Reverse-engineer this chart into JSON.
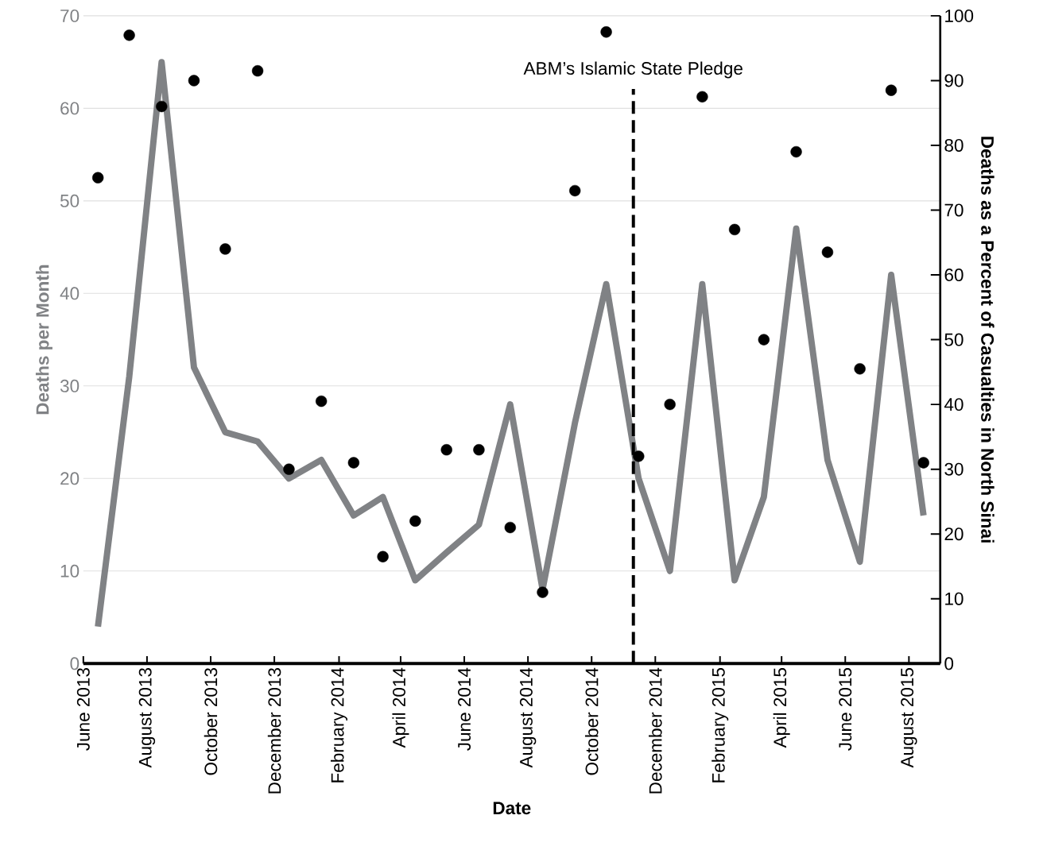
{
  "chart_data": {
    "type": "line",
    "xlabel": "Date",
    "ylabel": "Deaths per Month",
    "y2label": "Deaths as a Percent of Casualties in North Sinai",
    "x": [
      "2013-06-15",
      "2013-07-15",
      "2013-08-15",
      "2013-09-15",
      "2013-10-15",
      "2013-11-15",
      "2013-12-15",
      "2014-01-15",
      "2014-02-15",
      "2014-03-15",
      "2014-04-15",
      "2014-05-15",
      "2014-06-15",
      "2014-07-15",
      "2014-08-15",
      "2014-09-15",
      "2014-10-15",
      "2014-11-15",
      "2014-12-15",
      "2015-01-15",
      "2015-02-15",
      "2015-03-15",
      "2015-04-15",
      "2015-05-15",
      "2015-06-15",
      "2015-07-15",
      "2015-08-15"
    ],
    "series": [
      {
        "color": "#808285",
        "values": [
          4,
          31,
          65,
          32,
          25,
          24,
          20,
          22,
          16,
          18,
          9,
          12,
          15,
          28,
          8,
          26,
          41,
          20,
          10,
          41,
          9,
          18,
          47,
          22,
          11,
          42,
          16
        ]
      },
      {
        "type": "scatter",
        "axis": "y2",
        "marker": "circle",
        "color": "#000000",
        "values": [
          75,
          97,
          86,
          90,
          64,
          91.5,
          30,
          40.5,
          31,
          16.5,
          22,
          33,
          33,
          21,
          11,
          73,
          97.5,
          32,
          40,
          87.5,
          67,
          50,
          79,
          63.5,
          45.5,
          88.5,
          31
        ]
      }
    ],
    "xlim": [
      "2013-06-01",
      "2015-08-31"
    ],
    "xticks": [
      {
        "value": "2013-06-01",
        "label": "June 2013"
      },
      {
        "value": "2013-08-01",
        "label": "August 2013"
      },
      {
        "value": "2013-10-01",
        "label": "October 2013"
      },
      {
        "value": "2013-12-01",
        "label": "December 2013"
      },
      {
        "value": "2014-02-01",
        "label": "February 2014"
      },
      {
        "value": "2014-04-01",
        "label": "April 2014"
      },
      {
        "value": "2014-06-01",
        "label": "June 2014"
      },
      {
        "value": "2014-08-01",
        "label": "August 2014"
      },
      {
        "value": "2014-10-01",
        "label": "October 2014"
      },
      {
        "value": "2014-12-01",
        "label": "December 2014"
      },
      {
        "value": "2015-02-01",
        "label": "February 2015"
      },
      {
        "value": "2015-04-01",
        "label": "April 2015"
      },
      {
        "value": "2015-06-01",
        "label": "June 2015"
      },
      {
        "value": "2015-08-01",
        "label": "August 2015"
      }
    ],
    "ylim": [
      0,
      70
    ],
    "yticks": [
      0,
      10,
      20,
      30,
      40,
      50,
      60,
      70
    ],
    "y2lim": [
      0,
      100
    ],
    "y2ticks": [
      0,
      10,
      20,
      30,
      40,
      50,
      60,
      70,
      80,
      90,
      100
    ],
    "ref_lines": [
      {
        "axis": "x",
        "value": "2014-11-10",
        "label": "ABM’s Islamic State Pledge",
        "line_style": "dashed",
        "color": "#000000"
      }
    ],
    "grid": "y"
  }
}
